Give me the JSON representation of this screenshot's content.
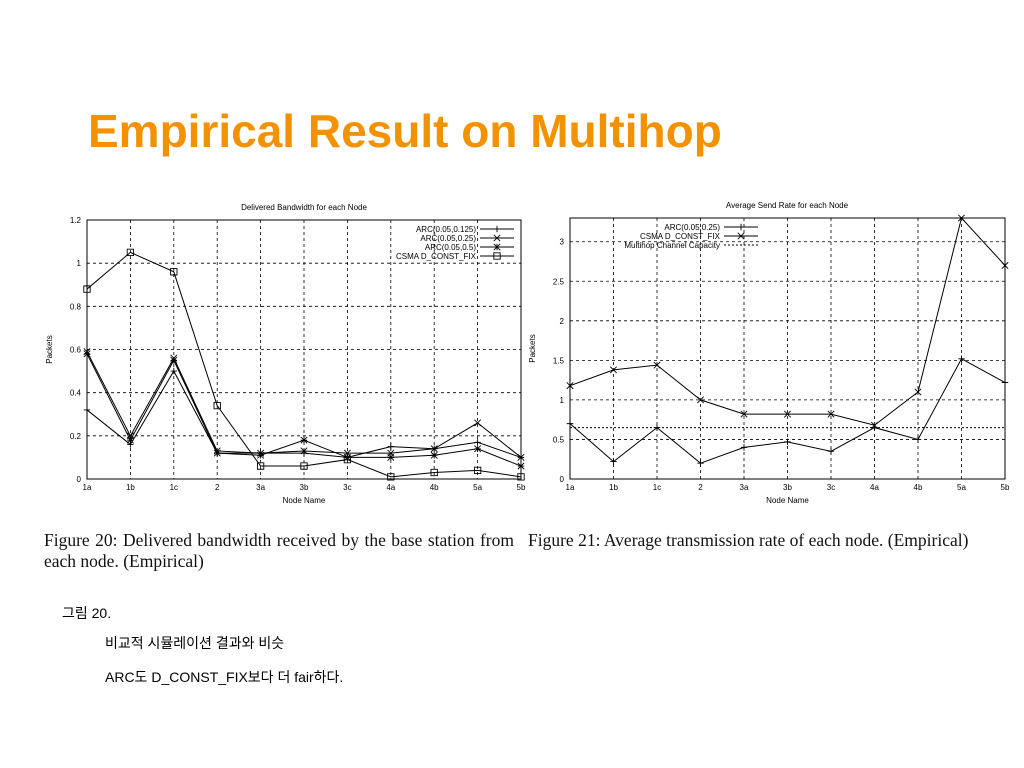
{
  "title": "Empirical Result on Multihop",
  "chart_data": [
    {
      "type": "line",
      "title": "Delivered Bandwidth for each Node",
      "x_label": "Node Name",
      "y_label": "Packets",
      "categories": [
        "1a",
        "1b",
        "1c",
        "2",
        "3a",
        "3b",
        "3c",
        "4a",
        "4b",
        "5a",
        "5b"
      ],
      "ylim": [
        0,
        1.2
      ],
      "yticks": [
        0,
        0.2,
        0.4,
        0.6,
        0.8,
        1,
        1.2
      ],
      "grid": true,
      "legend": "upper right",
      "series": [
        {
          "name": "ARC(0.05,0.125)",
          "color": "#000000",
          "marker": "plus",
          "values": [
            0.32,
            0.16,
            0.5,
            0.12,
            0.12,
            0.12,
            0.1,
            0.15,
            0.14,
            0.17,
            0.1
          ]
        },
        {
          "name": "ARC(0.05,0.25)",
          "color": "#000000",
          "marker": "cross",
          "values": [
            0.59,
            0.2,
            0.56,
            0.13,
            0.12,
            0.13,
            0.12,
            0.12,
            0.14,
            0.26,
            0.1
          ]
        },
        {
          "name": "ARC(0.05,0.5)",
          "color": "#000000",
          "marker": "star",
          "values": [
            0.58,
            0.18,
            0.55,
            0.12,
            0.11,
            0.18,
            0.1,
            0.1,
            0.11,
            0.14,
            0.06
          ]
        },
        {
          "name": "CSMA D_CONST_FIX",
          "color": "#000000",
          "marker": "square",
          "values": [
            0.88,
            1.05,
            0.96,
            0.34,
            0.06,
            0.06,
            0.09,
            0.01,
            0.03,
            0.04,
            0.01
          ]
        }
      ]
    },
    {
      "type": "line",
      "title": "Average Send Rate for each Node",
      "x_label": "Node Name",
      "y_label": "Packets",
      "categories": [
        "1a",
        "1b",
        "1c",
        "2",
        "3a",
        "3b",
        "3c",
        "4a",
        "4b",
        "5a",
        "5b"
      ],
      "ylim": [
        0,
        3.3
      ],
      "yticks": [
        0,
        0.5,
        1,
        1.5,
        2,
        2.5,
        3
      ],
      "grid": true,
      "legend": "upper left",
      "series": [
        {
          "name": "ARC(0.05,0.25)",
          "color": "#000000",
          "marker": "plus",
          "values": [
            0.7,
            0.22,
            0.65,
            0.2,
            0.4,
            0.47,
            0.35,
            0.65,
            0.5,
            1.52,
            1.22
          ]
        },
        {
          "name": "CSMA D_CONST_FIX",
          "color": "#000000",
          "marker": "cross",
          "values": [
            1.18,
            1.38,
            1.44,
            1.0,
            0.82,
            0.82,
            0.82,
            0.68,
            1.1,
            3.3,
            2.7
          ]
        },
        {
          "name": "Multihop Channel Capacity",
          "color": "#000000",
          "dash": true,
          "values": [
            0.65,
            0.65,
            0.65,
            0.65,
            0.65,
            0.65,
            0.65,
            0.65,
            0.65,
            0.65,
            0.65
          ]
        }
      ]
    }
  ],
  "captions": [
    "Figure 20:  Delivered bandwidth received by the base station from each node. (Empirical)",
    "Figure 21:  Average transmission rate of each node. (Empirical)"
  ],
  "notes": [
    "그림 20.",
    "비교적 시뮬레이션 결과와 비슷",
    "ARC도 D_CONST_FIX보다 더 fair하다."
  ]
}
